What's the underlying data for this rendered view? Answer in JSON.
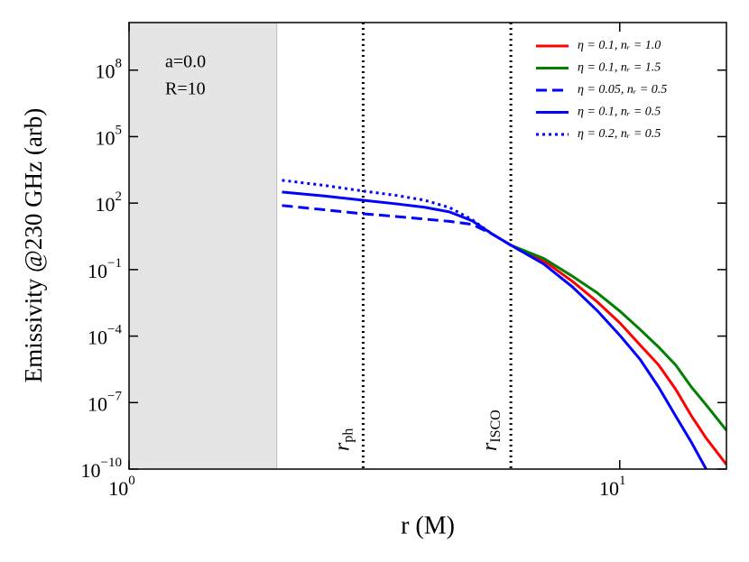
{
  "chart_data": {
    "type": "line",
    "x_label": "r (M)",
    "y_label": "Emissivity @230 GHz (arb)",
    "xscale": "log",
    "yscale": "log",
    "xlim": [
      1,
      16.5
    ],
    "ylim": [
      1e-10,
      14000000000.0
    ],
    "xticks": [
      {
        "value": 1,
        "label": "10",
        "exponent": "0"
      },
      {
        "value": 10,
        "label": "10",
        "exponent": "1"
      }
    ],
    "yticks": [
      {
        "value": 1e-10,
        "label": "10",
        "exponent": "−10"
      },
      {
        "value": 1e-07,
        "label": "10",
        "exponent": "−7"
      },
      {
        "value": 0.0001,
        "label": "10",
        "exponent": "−4"
      },
      {
        "value": 0.1,
        "label": "10",
        "exponent": "−1"
      },
      {
        "value": 100,
        "label": "10",
        "exponent": "2"
      },
      {
        "value": 100000,
        "label": "10",
        "exponent": "5"
      },
      {
        "value": 100000000,
        "label": "10",
        "exponent": "8"
      }
    ],
    "shade": {
      "range": [
        1,
        2
      ],
      "color": "#e5e5e5"
    },
    "vlines": [
      {
        "x": 3,
        "text": "r",
        "sub": "ph"
      },
      {
        "x": 6,
        "text": "r",
        "sub": "ISCO"
      }
    ],
    "annotations": [
      "a=0.0",
      "R=10"
    ],
    "legend": "upper right",
    "x": [
      2.05,
      2.5,
      3,
      3.5,
      4,
      4.5,
      5,
      5.5,
      6,
      7,
      8,
      9,
      10,
      11,
      12,
      13,
      14,
      15,
      16.5
    ],
    "series": [
      {
        "name": "η = 0.1, nᵣ = 1.0",
        "color": "#ff0000",
        "dash": "solid",
        "values": [
          null,
          null,
          null,
          null,
          null,
          null,
          null,
          null,
          1.26,
          0.25,
          0.03,
          0.0035,
          0.0004,
          4e-05,
          5e-06,
          4e-07,
          2.5e-08,
          2.5e-09,
          1.6e-10
        ]
      },
      {
        "name": "η = 0.1, nᵣ = 1.5",
        "color": "#008000",
        "dash": "solid",
        "values": [
          null,
          null,
          null,
          null,
          null,
          null,
          null,
          null,
          1.26,
          0.32,
          0.051,
          0.0089,
          0.00135,
          0.0002,
          3.2e-05,
          5e-06,
          5e-07,
          7.9e-08,
          5.6e-09
        ]
      },
      {
        "name": "η = 0.05, nᵣ = 0.5",
        "color": "#0000ff",
        "dash": "dashed",
        "values": [
          78,
          50,
          33,
          25,
          19,
          15,
          11,
          4,
          1.26,
          null,
          null,
          null,
          null,
          null,
          null,
          null,
          null,
          null,
          null
        ]
      },
      {
        "name": "η = 0.1, nᵣ = 0.5",
        "color": "#0000ff",
        "dash": "solid",
        "values": [
          316,
          209,
          135,
          93,
          65,
          40,
          16,
          4,
          1.26,
          0.18,
          0.017,
          0.0014,
          0.00011,
          9e-06,
          5e-07,
          2.5e-08,
          1.6e-09,
          1e-10,
          null
        ]
      },
      {
        "name": "η = 0.2, nᵣ = 0.5",
        "color": "#0000ff",
        "dash": "dotted",
        "values": [
          1070,
          630,
          350,
          224,
          135,
          63,
          18,
          4,
          1.26,
          null,
          null,
          null,
          null,
          null,
          null,
          null,
          null,
          null,
          null
        ]
      }
    ]
  }
}
